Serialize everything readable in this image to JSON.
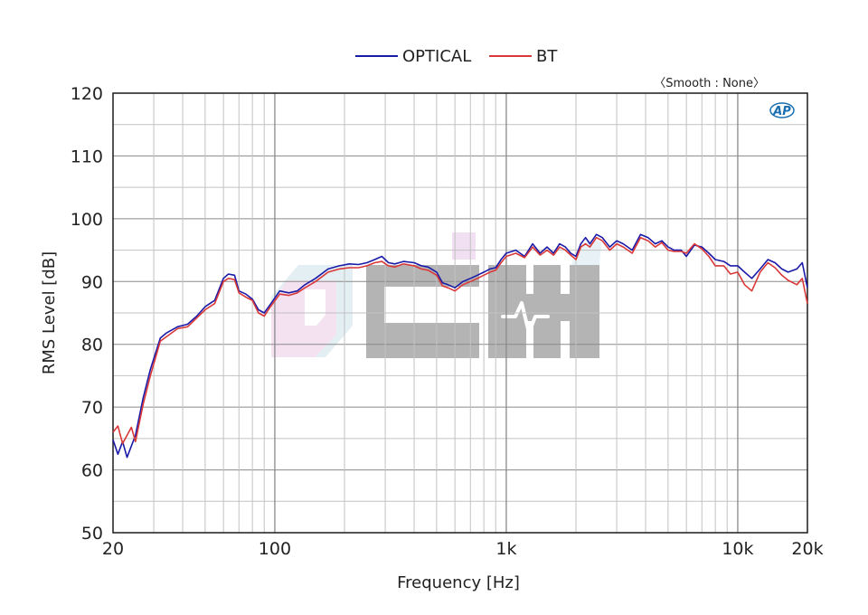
{
  "chart_data": {
    "type": "line",
    "xlabel": "Frequency [Hz]",
    "ylabel": "RMS Level [dB]",
    "x_scale": "log",
    "xlim": [
      20,
      20000
    ],
    "ylim": [
      50,
      120
    ],
    "x_ticks": [
      {
        "value": 20,
        "label": "20"
      },
      {
        "value": 100,
        "label": "100"
      },
      {
        "value": 1000,
        "label": "1k"
      },
      {
        "value": 10000,
        "label": "10k"
      },
      {
        "value": 20000,
        "label": "20k"
      }
    ],
    "y_ticks": [
      50,
      60,
      70,
      80,
      90,
      100,
      110,
      120
    ],
    "grid": true,
    "legend_position": "top-center",
    "annotation": "〈Smooth : None〉",
    "logo_text": "AP",
    "watermark_text": "CIHI",
    "series": [
      {
        "name": "OPTICAL",
        "color": "#1a1aa8",
        "points": [
          [
            20,
            64.8
          ],
          [
            21,
            62.5
          ],
          [
            22,
            64.5
          ],
          [
            23,
            62
          ],
          [
            25,
            65.5
          ],
          [
            27,
            71.5
          ],
          [
            29,
            76
          ],
          [
            32,
            81
          ],
          [
            34,
            81.8
          ],
          [
            38,
            82.8
          ],
          [
            42,
            83.2
          ],
          [
            46,
            84.5
          ],
          [
            50,
            86
          ],
          [
            55,
            87
          ],
          [
            60,
            90.5
          ],
          [
            63,
            91.2
          ],
          [
            67,
            91
          ],
          [
            70,
            88.5
          ],
          [
            75,
            88
          ],
          [
            80,
            87.2
          ],
          [
            85,
            85.5
          ],
          [
            90,
            85
          ],
          [
            95,
            86.2
          ],
          [
            105,
            88.5
          ],
          [
            115,
            88.2
          ],
          [
            125,
            88.5
          ],
          [
            135,
            89.5
          ],
          [
            150,
            90.5
          ],
          [
            170,
            92
          ],
          [
            190,
            92.5
          ],
          [
            210,
            92.8
          ],
          [
            230,
            92.7
          ],
          [
            250,
            93
          ],
          [
            270,
            93.5
          ],
          [
            290,
            94
          ],
          [
            310,
            93
          ],
          [
            330,
            92.8
          ],
          [
            360,
            93.2
          ],
          [
            400,
            93
          ],
          [
            430,
            92.5
          ],
          [
            460,
            92.3
          ],
          [
            500,
            91.5
          ],
          [
            530,
            89.8
          ],
          [
            560,
            89.5
          ],
          [
            600,
            89
          ],
          [
            650,
            90
          ],
          [
            700,
            90.5
          ],
          [
            750,
            91
          ],
          [
            800,
            91.5
          ],
          [
            850,
            92
          ],
          [
            900,
            92.2
          ],
          [
            950,
            93.5
          ],
          [
            1000,
            94.5
          ],
          [
            1100,
            95
          ],
          [
            1200,
            94
          ],
          [
            1300,
            96
          ],
          [
            1400,
            94.5
          ],
          [
            1500,
            95.5
          ],
          [
            1600,
            94.5
          ],
          [
            1700,
            96
          ],
          [
            1800,
            95.5
          ],
          [
            1900,
            94.5
          ],
          [
            2000,
            94
          ],
          [
            2100,
            96
          ],
          [
            2200,
            97
          ],
          [
            2300,
            96
          ],
          [
            2450,
            97.5
          ],
          [
            2600,
            97
          ],
          [
            2800,
            95.5
          ],
          [
            3000,
            96.5
          ],
          [
            3200,
            96
          ],
          [
            3500,
            95
          ],
          [
            3800,
            97.5
          ],
          [
            4100,
            97
          ],
          [
            4400,
            96
          ],
          [
            4700,
            96.5
          ],
          [
            5000,
            95.5
          ],
          [
            5300,
            95
          ],
          [
            5700,
            95
          ],
          [
            6000,
            94
          ],
          [
            6500,
            95.8
          ],
          [
            7000,
            95.5
          ],
          [
            7500,
            94.5
          ],
          [
            8000,
            93.5
          ],
          [
            8700,
            93.2
          ],
          [
            9300,
            92.5
          ],
          [
            10000,
            92.5
          ],
          [
            10700,
            91.5
          ],
          [
            11500,
            90.5
          ],
          [
            12500,
            92
          ],
          [
            13500,
            93.5
          ],
          [
            14500,
            93
          ],
          [
            15500,
            92
          ],
          [
            16500,
            91.5
          ],
          [
            18000,
            92
          ],
          [
            19000,
            93
          ],
          [
            20000,
            89
          ]
        ]
      },
      {
        "name": "BT",
        "color": "#d93838",
        "points": [
          [
            20,
            66
          ],
          [
            21,
            67
          ],
          [
            22,
            64.2
          ],
          [
            23,
            65.5
          ],
          [
            24,
            66.8
          ],
          [
            25,
            64.5
          ],
          [
            27,
            70.5
          ],
          [
            29,
            75
          ],
          [
            32,
            80.5
          ],
          [
            34,
            81.2
          ],
          [
            38,
            82.5
          ],
          [
            42,
            82.8
          ],
          [
            46,
            84.2
          ],
          [
            50,
            85.5
          ],
          [
            55,
            86.5
          ],
          [
            60,
            90
          ],
          [
            63,
            90.5
          ],
          [
            67,
            90.3
          ],
          [
            70,
            88.2
          ],
          [
            75,
            87.5
          ],
          [
            80,
            87
          ],
          [
            85,
            85
          ],
          [
            90,
            84.5
          ],
          [
            95,
            85.8
          ],
          [
            105,
            88
          ],
          [
            115,
            87.8
          ],
          [
            125,
            88.2
          ],
          [
            135,
            89
          ],
          [
            150,
            90
          ],
          [
            170,
            91.5
          ],
          [
            190,
            92
          ],
          [
            210,
            92.2
          ],
          [
            230,
            92.2
          ],
          [
            250,
            92.5
          ],
          [
            270,
            93
          ],
          [
            290,
            93.2
          ],
          [
            310,
            92.5
          ],
          [
            330,
            92.3
          ],
          [
            360,
            92.8
          ],
          [
            400,
            92.5
          ],
          [
            430,
            92
          ],
          [
            460,
            91.8
          ],
          [
            500,
            91
          ],
          [
            530,
            89.3
          ],
          [
            560,
            89
          ],
          [
            600,
            88.5
          ],
          [
            650,
            89.5
          ],
          [
            700,
            90
          ],
          [
            750,
            90.5
          ],
          [
            800,
            91
          ],
          [
            850,
            91.5
          ],
          [
            900,
            91.8
          ],
          [
            950,
            93
          ],
          [
            1000,
            94
          ],
          [
            1100,
            94.5
          ],
          [
            1200,
            93.8
          ],
          [
            1300,
            95.5
          ],
          [
            1400,
            94.2
          ],
          [
            1500,
            95
          ],
          [
            1600,
            94.2
          ],
          [
            1700,
            95.5
          ],
          [
            1800,
            95
          ],
          [
            1900,
            94.2
          ],
          [
            2000,
            93.5
          ],
          [
            2100,
            95.5
          ],
          [
            2200,
            96
          ],
          [
            2300,
            95.5
          ],
          [
            2450,
            97
          ],
          [
            2600,
            96.5
          ],
          [
            2800,
            95
          ],
          [
            3000,
            96
          ],
          [
            3200,
            95.5
          ],
          [
            3500,
            94.5
          ],
          [
            3800,
            97
          ],
          [
            4100,
            96.5
          ],
          [
            4400,
            95.5
          ],
          [
            4700,
            96.2
          ],
          [
            5000,
            95
          ],
          [
            5300,
            94.8
          ],
          [
            5700,
            94.8
          ],
          [
            6000,
            94.5
          ],
          [
            6500,
            96
          ],
          [
            7000,
            95.2
          ],
          [
            7500,
            94
          ],
          [
            8000,
            92.5
          ],
          [
            8700,
            92.5
          ],
          [
            9300,
            91.2
          ],
          [
            10000,
            91.5
          ],
          [
            10700,
            89.5
          ],
          [
            11500,
            88.5
          ],
          [
            12500,
            91.5
          ],
          [
            13500,
            93
          ],
          [
            14500,
            92.2
          ],
          [
            15500,
            91
          ],
          [
            16500,
            90.2
          ],
          [
            18000,
            89.5
          ],
          [
            19000,
            90.5
          ],
          [
            20000,
            86.5
          ]
        ]
      }
    ]
  }
}
